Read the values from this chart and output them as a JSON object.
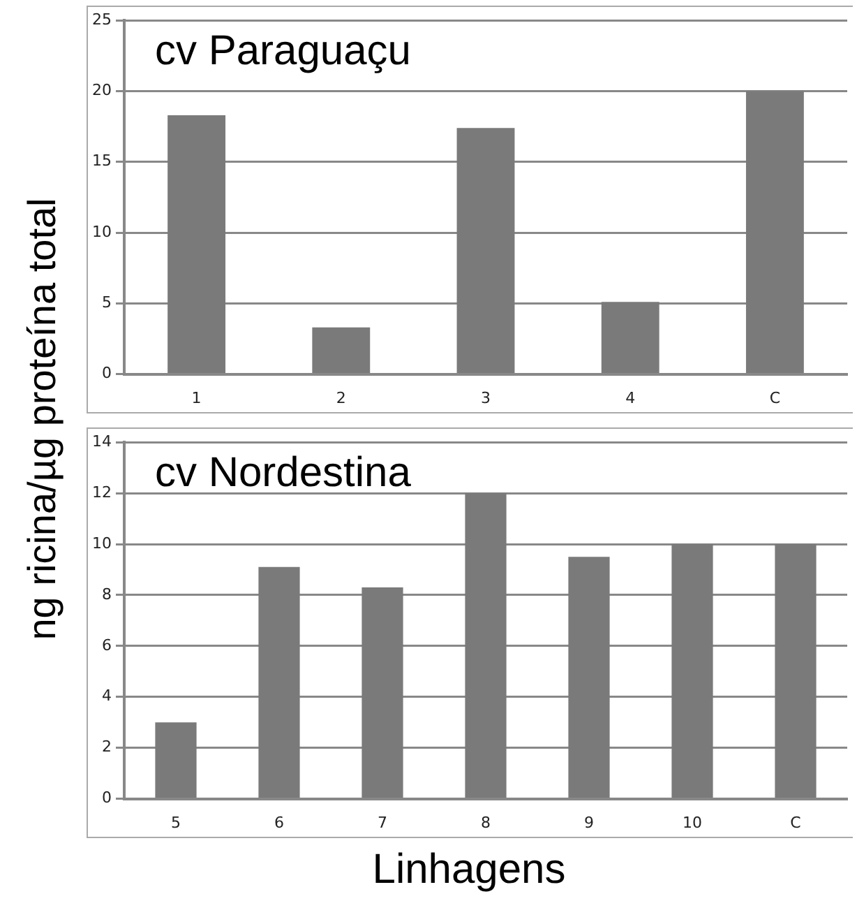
{
  "chart_data": [
    {
      "type": "bar",
      "title": "cv Paraguaçu",
      "ylabel": "ng ricina/µg proteína total",
      "categories": [
        "1",
        "2",
        "3",
        "4",
        "C"
      ],
      "values": [
        18.3,
        3.3,
        17.4,
        5.1,
        20
      ],
      "color": "#7a7a7a",
      "ylim": [
        0,
        25
      ],
      "yticks": [
        0,
        5,
        10,
        15,
        20,
        25
      ],
      "grid": "y",
      "legend": false
    },
    {
      "type": "bar",
      "title": "cv Nordestina",
      "xlabel": "Linhagens",
      "categories": [
        "5",
        "6",
        "7",
        "8",
        "9",
        "10",
        "C"
      ],
      "values": [
        3.0,
        9.1,
        8.3,
        12.0,
        9.5,
        10.0,
        10.0
      ],
      "color": "#7a7a7a",
      "ylim": [
        0,
        14
      ],
      "yticks": [
        0,
        2,
        4,
        6,
        8,
        10,
        12,
        14
      ],
      "grid": "y",
      "legend": false
    }
  ]
}
